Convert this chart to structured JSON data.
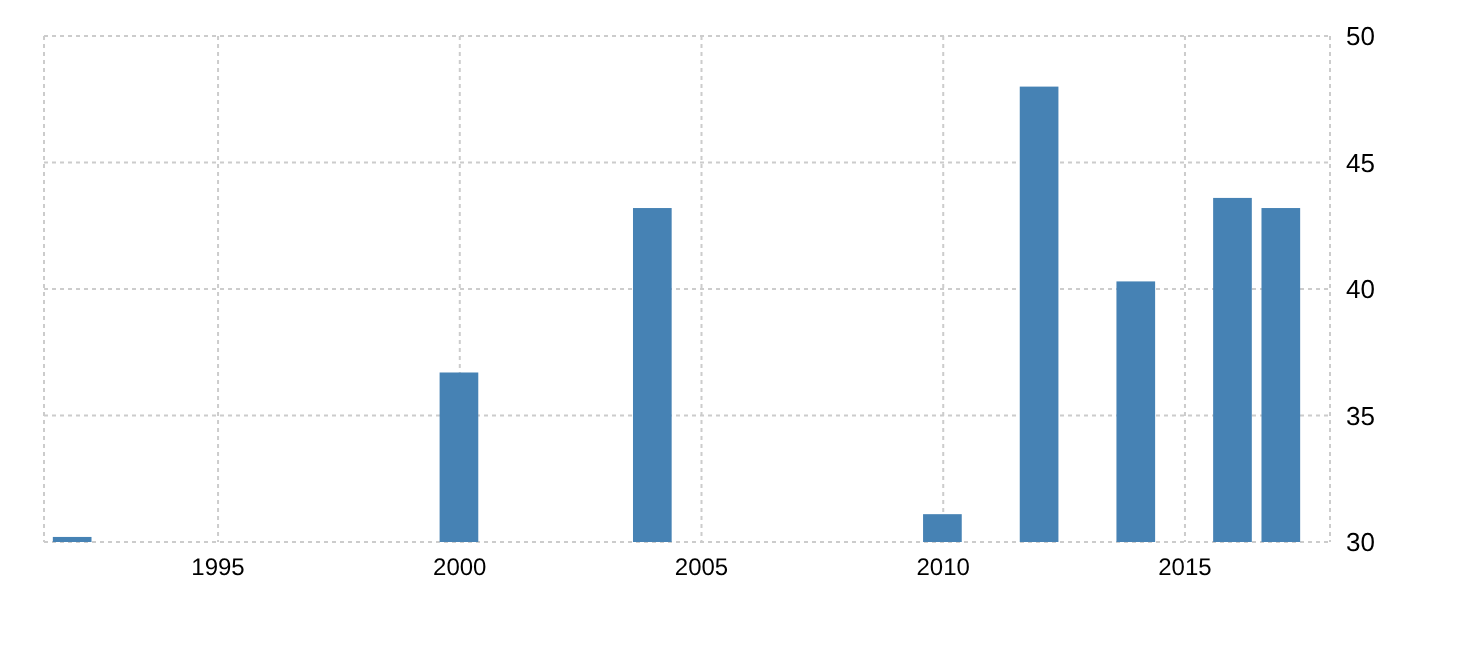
{
  "chart_data": {
    "type": "bar",
    "x": [
      1992,
      2000,
      2004,
      2010,
      2012,
      2014,
      2016,
      2017
    ],
    "values": [
      30.2,
      36.7,
      43.2,
      31.1,
      48.0,
      40.3,
      43.6,
      43.2
    ],
    "color": "#4682b4",
    "xlim": [
      1991.4,
      2018
    ],
    "xticks": [
      1995,
      2000,
      2005,
      2010,
      2015
    ],
    "ylim": [
      30,
      50
    ],
    "yticks": [
      30,
      35,
      40,
      45,
      50
    ],
    "grid": true
  }
}
